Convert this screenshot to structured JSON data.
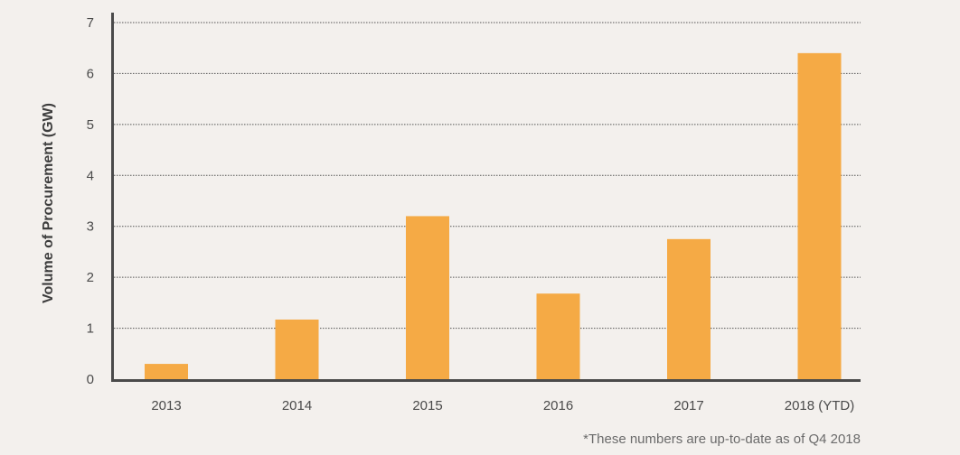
{
  "chart_data": {
    "type": "bar",
    "categories": [
      "2013",
      "2014",
      "2015",
      "2016",
      "2017",
      "2018 (YTD)"
    ],
    "values": [
      0.3,
      1.17,
      3.2,
      1.68,
      2.75,
      6.4
    ],
    "title": "",
    "xlabel": "",
    "ylabel": "Volume of Procurement (GW)",
    "ylim": [
      0,
      7
    ],
    "yticks": [
      0,
      1,
      2,
      3,
      4,
      5,
      6,
      7
    ],
    "grid": "horizontal dotted",
    "bar_color": "#f5aa45",
    "axis_color": "#4a4a4a",
    "grid_color": "#555555"
  },
  "footnote": "*These numbers are up-to-date as of Q4 2018"
}
